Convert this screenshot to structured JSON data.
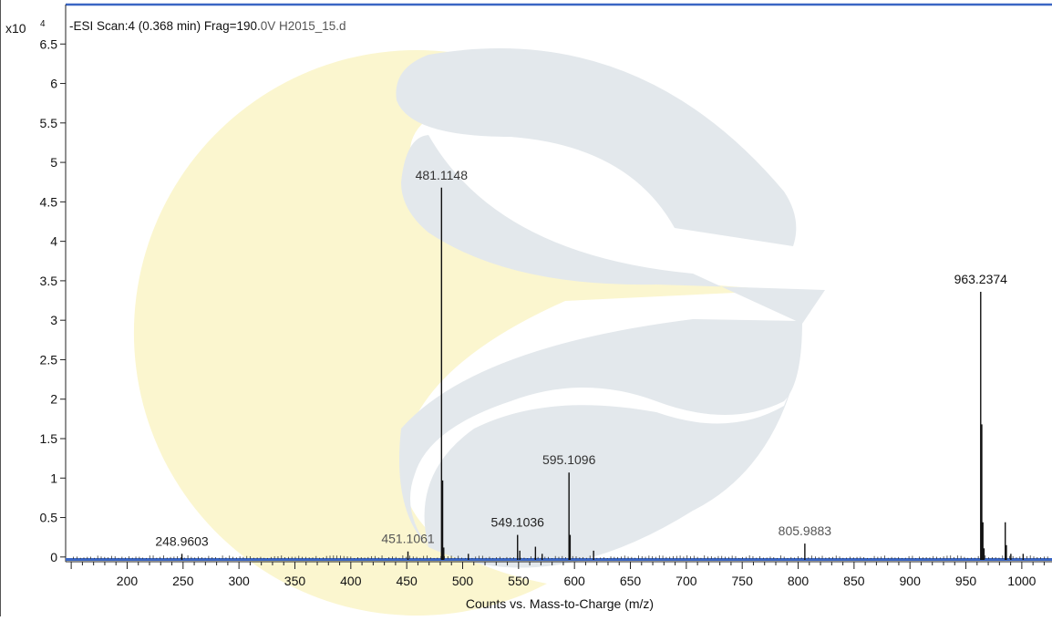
{
  "header": {
    "exponent_base": "x10",
    "exponent_power": "4",
    "scan_text": "-ESI Scan:4 (0.368 min) Frag=190.",
    "scan_text_tail": "0V H2015_15.d"
  },
  "chart_data": {
    "type": "line",
    "title": "-ESI Scan:4 (0.368 min) Frag=190.0V H2015_15.d",
    "xlabel": "Counts vs. Mass-to-Charge (m/z)",
    "ylabel": "",
    "y_multiplier": "x10^4",
    "xlim": [
      145,
      1027
    ],
    "ylim": [
      -0.06,
      7.0
    ],
    "x_ticks": [
      200,
      250,
      300,
      350,
      400,
      450,
      500,
      550,
      600,
      650,
      700,
      750,
      800,
      850,
      900,
      950,
      1000
    ],
    "y_ticks": [
      0,
      0.5,
      1,
      1.5,
      2,
      2.5,
      3,
      3.5,
      4,
      4.5,
      5,
      5.5,
      6,
      6.5
    ],
    "y_tick_labels": [
      "0",
      "0.5",
      "1",
      "1.5",
      "2",
      "2.5",
      "3",
      "3.5",
      "4",
      "4.5",
      "5",
      "5.5",
      "6",
      "6.5"
    ],
    "grid": false,
    "peaks": [
      {
        "mz": 248.9603,
        "intensity": 0.04,
        "label": "248.9603"
      },
      {
        "mz": 451.1061,
        "intensity": 0.07,
        "label": "451.1061"
      },
      {
        "mz": 481.1148,
        "intensity": 4.68,
        "label": "481.1148"
      },
      {
        "mz": 482.1,
        "intensity": 0.97
      },
      {
        "mz": 483.1,
        "intensity": 0.12
      },
      {
        "mz": 505.1,
        "intensity": 0.04
      },
      {
        "mz": 549.1036,
        "intensity": 0.28,
        "label": "549.1036"
      },
      {
        "mz": 551.1,
        "intensity": 0.08
      },
      {
        "mz": 565.1,
        "intensity": 0.13
      },
      {
        "mz": 571.1,
        "intensity": 0.04
      },
      {
        "mz": 595.1096,
        "intensity": 1.07,
        "label": "595.1096"
      },
      {
        "mz": 596.1,
        "intensity": 0.28
      },
      {
        "mz": 617.1,
        "intensity": 0.08
      },
      {
        "mz": 805.9883,
        "intensity": 0.17,
        "label": "805.9883"
      },
      {
        "mz": 963.2374,
        "intensity": 3.36,
        "label": "963.2374"
      },
      {
        "mz": 964.2,
        "intensity": 1.68
      },
      {
        "mz": 965.2,
        "intensity": 0.44
      },
      {
        "mz": 966.2,
        "intensity": 0.11
      },
      {
        "mz": 985.2,
        "intensity": 0.44
      },
      {
        "mz": 986.2,
        "intensity": 0.15
      },
      {
        "mz": 990.2,
        "intensity": 0.04
      },
      {
        "mz": 1001.2,
        "intensity": 0.04
      }
    ],
    "label_colors": {
      "248.9603": "#222222",
      "451.1061": "#555555",
      "481.1148": "#333333",
      "549.1036": "#222222",
      "595.1096": "#333333",
      "805.9883": "#555555",
      "963.2374": "#111111"
    }
  },
  "colors": {
    "frame_blue": "#3a66c4",
    "baseline_blue": "#3a66c4",
    "axis": "#222222",
    "peak": "#111111",
    "watermark_yellow": "#fbf6cf",
    "watermark_grey": "#e3e8ec"
  },
  "watermark": {
    "icon": "logo-watermark"
  }
}
